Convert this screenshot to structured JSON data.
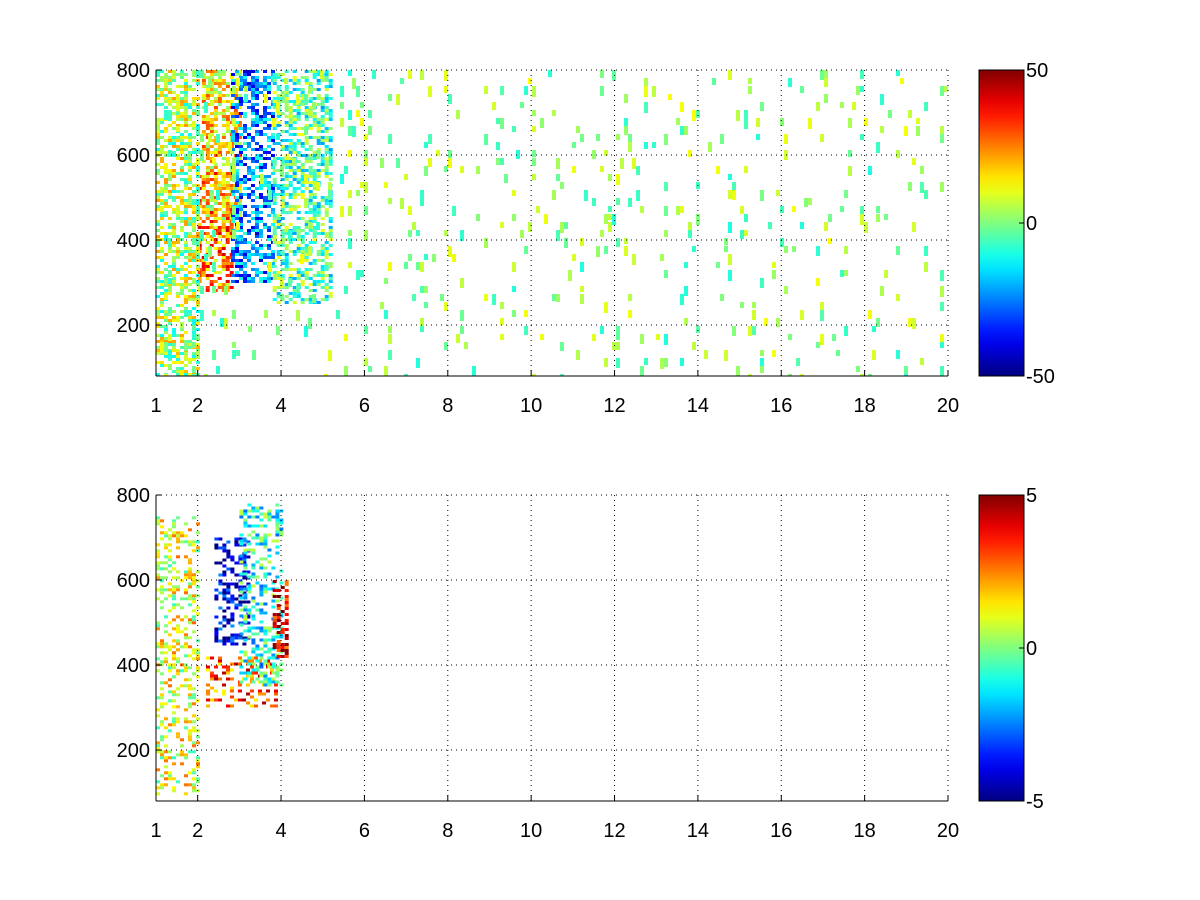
{
  "chart_data": [
    {
      "type": "heatmap",
      "title": "",
      "xlabel": "",
      "ylabel": "",
      "xlim": [
        1,
        20
      ],
      "ylim": [
        80,
        800
      ],
      "xticks": [
        1,
        2,
        4,
        6,
        8,
        10,
        12,
        14,
        16,
        18,
        20
      ],
      "yticks": [
        200,
        400,
        600,
        800
      ],
      "grid": true,
      "colormap": "jet",
      "colorbar": {
        "min": -50,
        "max": 50,
        "ticks": [
          50,
          0,
          -50
        ]
      },
      "features": [
        {
          "x": [
            2.0,
            2.8
          ],
          "y": [
            280,
            560
          ],
          "value": 25
        },
        {
          "x": [
            2.1,
            3.0
          ],
          "y": [
            450,
            800
          ],
          "value": 15
        },
        {
          "x": [
            2.8,
            3.8
          ],
          "y": [
            300,
            800
          ],
          "value": -25
        },
        {
          "x": [
            3.8,
            5.2
          ],
          "y": [
            250,
            800
          ],
          "value": -5
        },
        {
          "x": [
            1.0,
            2.0
          ],
          "y": [
            80,
            800
          ],
          "value": 5
        }
      ],
      "scatter_density": 0.22
    },
    {
      "type": "heatmap",
      "title": "",
      "xlabel": "",
      "ylabel": "",
      "xlim": [
        1,
        20
      ],
      "ylim": [
        80,
        800
      ],
      "xticks": [
        1,
        2,
        4,
        6,
        8,
        10,
        12,
        14,
        16,
        18,
        20
      ],
      "yticks": [
        200,
        400,
        600,
        800
      ],
      "grid": true,
      "colormap": "jet",
      "colorbar": {
        "min": -5,
        "max": 5,
        "ticks": [
          5,
          0,
          -5
        ]
      },
      "features": [
        {
          "x": [
            2.2,
            3.9
          ],
          "y": [
            300,
            420
          ],
          "value": 3
        },
        {
          "x": [
            2.4,
            3.2
          ],
          "y": [
            450,
            700
          ],
          "value": -4
        },
        {
          "x": [
            3.0,
            4.0
          ],
          "y": [
            350,
            780
          ],
          "value": -1
        },
        {
          "x": [
            3.8,
            4.1
          ],
          "y": [
            420,
            600
          ],
          "value": 4
        },
        {
          "x": [
            1.0,
            2.0
          ],
          "y": [
            100,
            750
          ],
          "value": 1
        }
      ],
      "scatter_density": 0.0
    }
  ]
}
